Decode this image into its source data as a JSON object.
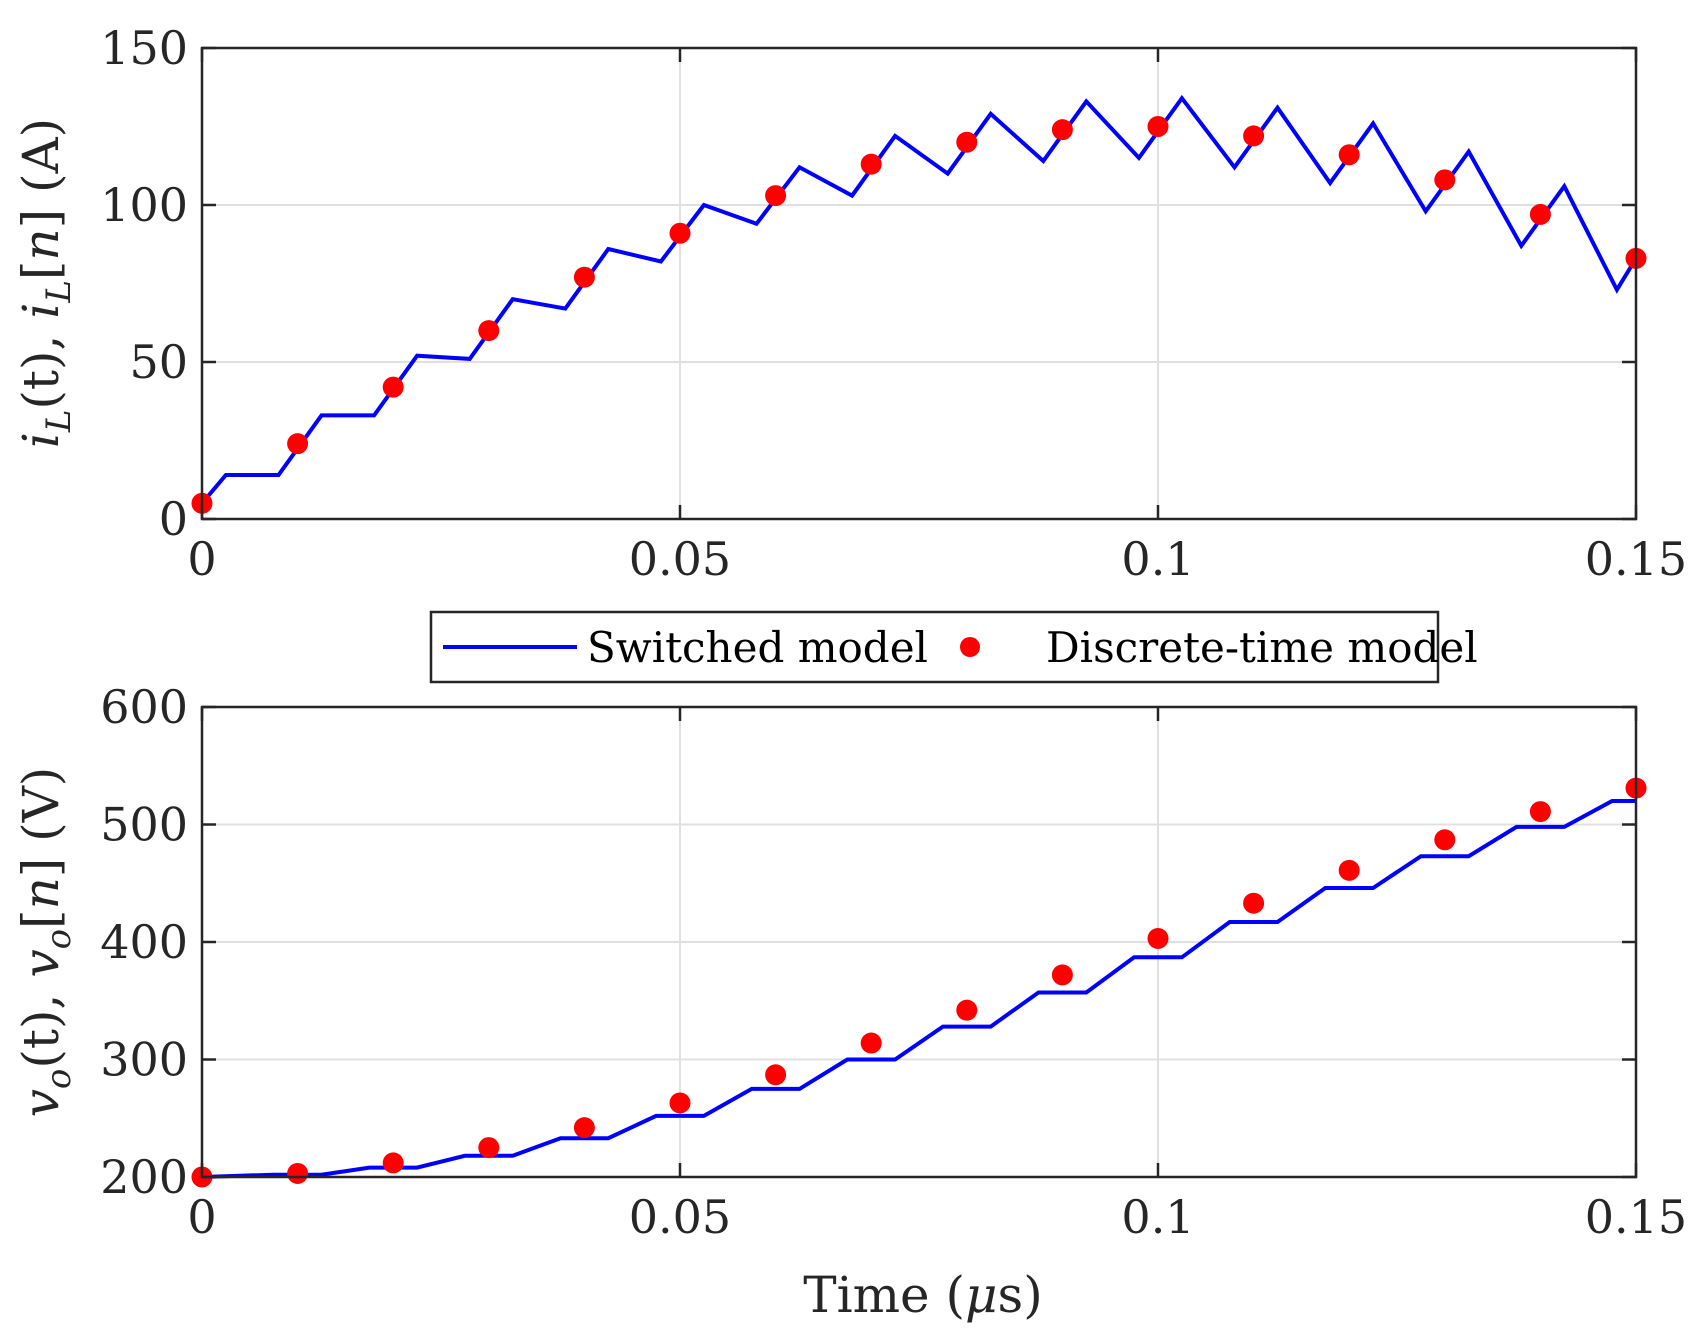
{
  "colors": {
    "line": "#0000ff",
    "marker": "#ff0000",
    "axis": "#262626",
    "grid": "#e0e0e0"
  },
  "legend": {
    "switched_label": "Switched model",
    "discrete_label": "Discrete-time model",
    "placement": "between-panels"
  },
  "chart_data": [
    {
      "type": "line",
      "title": "",
      "xlabel": "",
      "ylabel": "i_L(t), i_L[n] (A)",
      "ylabel_parts": {
        "a": "i",
        "a_sub": "L",
        "b": "(t), ",
        "c": "i",
        "c_sub": "L",
        "d": "[",
        "e": "n",
        "f": "] (A)"
      },
      "xlim": [
        0,
        0.15
      ],
      "ylim": [
        0,
        150
      ],
      "xticks": [
        0,
        0.05,
        0.1,
        0.15
      ],
      "xtick_labels": [
        "0",
        "0.05",
        "0.1",
        "0.15"
      ],
      "yticks": [
        0,
        50,
        100,
        150
      ],
      "ytick_labels": [
        "0",
        "50",
        "100",
        "150"
      ],
      "grid": true,
      "series": [
        {
          "name": "Switched model",
          "style": "line",
          "x": [
            0,
            0.0025,
            0.008,
            0.0125,
            0.018,
            0.0225,
            0.028,
            0.0325,
            0.038,
            0.0425,
            0.048,
            0.0525,
            0.058,
            0.0625,
            0.068,
            0.0725,
            0.078,
            0.0825,
            0.088,
            0.0925,
            0.098,
            0.1025,
            0.108,
            0.1125,
            0.118,
            0.1225,
            0.128,
            0.1325,
            0.138,
            0.1425,
            0.148,
            0.15
          ],
          "y": [
            5,
            14,
            14,
            33,
            33,
            52,
            51,
            70,
            67,
            86,
            82,
            100,
            94,
            112,
            103,
            122,
            110,
            129,
            114,
            133,
            115,
            134,
            112,
            131,
            107,
            126,
            98,
            117,
            87,
            106,
            73,
            83
          ]
        },
        {
          "name": "Discrete-time model",
          "style": "markers",
          "x": [
            0,
            0.01,
            0.02,
            0.03,
            0.04,
            0.05,
            0.06,
            0.07,
            0.08,
            0.09,
            0.1,
            0.11,
            0.12,
            0.13,
            0.14,
            0.15
          ],
          "y": [
            5,
            24,
            42,
            60,
            77,
            91,
            103,
            113,
            120,
            124,
            125,
            122,
            116,
            108,
            97,
            83
          ]
        }
      ]
    },
    {
      "type": "line",
      "title": "",
      "xlabel": "Time (μs)",
      "xlabel_parts": {
        "a": "Time (",
        "b": "μ",
        "c": "s)"
      },
      "ylabel": "v_o(t), v_o[n] (V)",
      "ylabel_parts": {
        "a": "v",
        "a_sub": "o",
        "b": "(t), ",
        "c": "v",
        "c_sub": "o",
        "d": "[",
        "e": "n",
        "f": "] (V)"
      },
      "xlim": [
        0,
        0.15
      ],
      "ylim": [
        200,
        600
      ],
      "xticks": [
        0,
        0.05,
        0.1,
        0.15
      ],
      "xtick_labels": [
        "0",
        "0.05",
        "0.1",
        "0.15"
      ],
      "yticks": [
        200,
        300,
        400,
        500,
        600
      ],
      "ytick_labels": [
        "200",
        "300",
        "400",
        "500",
        "600"
      ],
      "grid": true,
      "series": [
        {
          "name": "Switched model",
          "style": "line",
          "x": [
            0,
            0.0075,
            0.0125,
            0.0175,
            0.0225,
            0.0275,
            0.0325,
            0.0375,
            0.0425,
            0.0475,
            0.0525,
            0.0575,
            0.0625,
            0.0675,
            0.0725,
            0.0775,
            0.0825,
            0.0875,
            0.0925,
            0.0975,
            0.1025,
            0.1075,
            0.1125,
            0.1175,
            0.1225,
            0.1275,
            0.1325,
            0.1375,
            0.1425,
            0.1475,
            0.15
          ],
          "y": [
            200,
            202,
            202,
            208,
            208,
            218,
            218,
            233,
            233,
            252,
            252,
            275,
            275,
            300,
            300,
            328,
            328,
            357,
            357,
            387,
            387,
            417,
            417,
            446,
            446,
            473,
            473,
            498,
            498,
            520,
            520
          ]
        },
        {
          "name": "Discrete-time model",
          "style": "markers",
          "x": [
            0,
            0.01,
            0.02,
            0.03,
            0.04,
            0.05,
            0.06,
            0.07,
            0.08,
            0.09,
            0.1,
            0.11,
            0.12,
            0.13,
            0.14,
            0.15
          ],
          "y": [
            200,
            203,
            212,
            225,
            242,
            263,
            287,
            314,
            342,
            372,
            403,
            433,
            461,
            487,
            511,
            531
          ]
        }
      ]
    }
  ]
}
